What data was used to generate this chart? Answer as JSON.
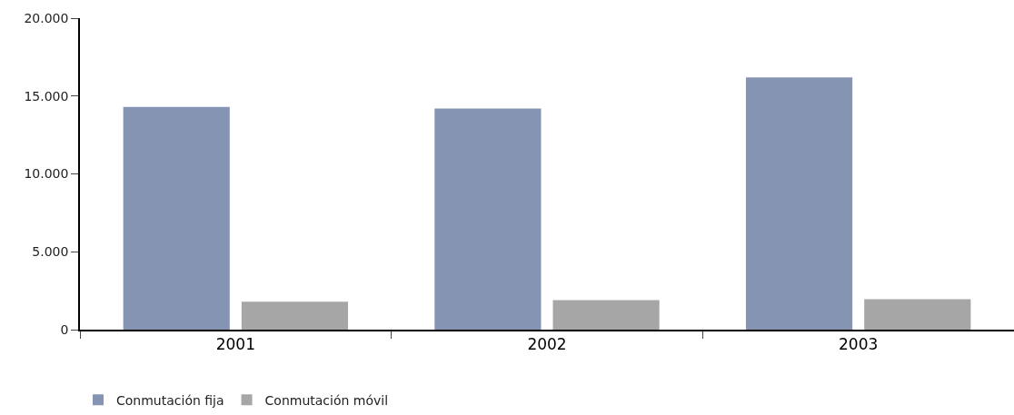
{
  "chart_data": {
    "type": "bar",
    "categories": [
      "2001",
      "2002",
      "2003"
    ],
    "series": [
      {
        "name": "Conmutación fija",
        "color": "#8594b3",
        "values": [
          14300,
          14200,
          16200
        ]
      },
      {
        "name": "Conmutación móvil",
        "color": "#a6a6a6",
        "values": [
          1800,
          1900,
          1950
        ]
      }
    ],
    "ylim": [
      0,
      20000
    ],
    "yticks": [
      {
        "value": 0,
        "label": "0"
      },
      {
        "value": 5000,
        "label": "5.000"
      },
      {
        "value": 10000,
        "label": "10.000"
      },
      {
        "value": 15000,
        "label": "15.000"
      },
      {
        "value": 20000,
        "label": "20.000"
      }
    ],
    "grid": false,
    "legend": "bottom left"
  }
}
